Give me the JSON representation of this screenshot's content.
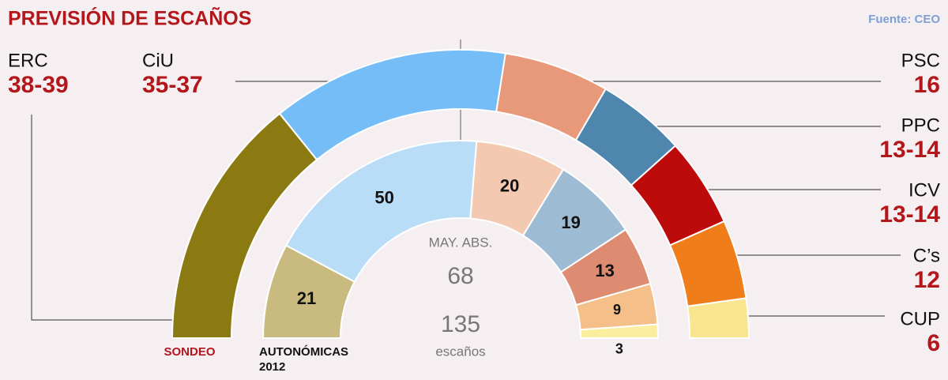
{
  "chart_data": {
    "type": "hemicycle",
    "title": "PREVISIÓN DE ESCAÑOS",
    "source": "Fuente: CEO",
    "center_label": "MAY. ABS.",
    "majority": 68,
    "total": 135,
    "total_label": "escaños",
    "parties": [
      "ERC",
      "CiU",
      "PSC",
      "PPC",
      "ICV",
      "C’s",
      "CUP"
    ],
    "series": [
      {
        "name": "SONDEO",
        "low": [
          38,
          35,
          16,
          13,
          13,
          12,
          6
        ],
        "high": [
          39,
          37,
          16,
          14,
          14,
          12,
          6
        ],
        "value_labels": [
          "38-39",
          "35-37",
          "16",
          "13-14",
          "13-14",
          "12",
          "6"
        ],
        "colors": [
          "#8b7a12",
          "#74bdf7",
          "#e8997a",
          "#4f86ad",
          "#bd0a0a",
          "#ef7d1a",
          "#f9e58f"
        ]
      },
      {
        "name_lines": [
          "AUTONÓMICAS",
          "2012"
        ],
        "values": [
          21,
          50,
          20,
          19,
          13,
          9,
          3
        ],
        "colors": [
          "#c9bb7f",
          "#b9dcf7",
          "#f3c9b1",
          "#9dbcd3",
          "#dd8c72",
          "#f5bf8a",
          "#fbef9f"
        ]
      }
    ]
  }
}
